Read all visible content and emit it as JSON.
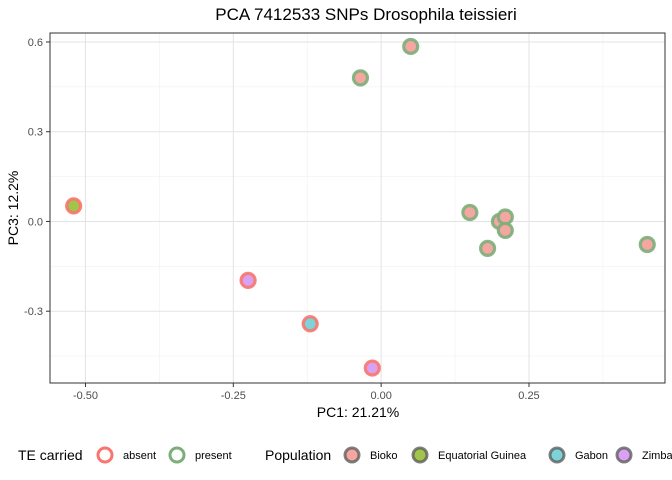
{
  "chart_data": {
    "type": "scatter",
    "title": "PCA 7412533 SNPs Drosophila teissieri",
    "xlabel": "PC1: 21.21%",
    "ylabel": "PC3: 12.2%",
    "xlim": [
      -0.56,
      0.48
    ],
    "ylim": [
      -0.54,
      0.63
    ],
    "x_ticks": [
      -0.5,
      -0.25,
      0,
      0.25
    ],
    "x_tick_labels": [
      "-0.50",
      "-0.25",
      "0.00",
      "0.25"
    ],
    "y_ticks": [
      -0.3,
      0,
      0.3,
      0.6
    ],
    "y_tick_labels": [
      "-0.3",
      "0.0",
      "0.3",
      "0.6"
    ],
    "grid": true,
    "legend_placement": "bottom",
    "te_legend": {
      "title": "TE carried",
      "entries": [
        {
          "label": "absent",
          "color": "#f8766d"
        },
        {
          "label": "present",
          "color": "#7cae7a"
        }
      ]
    },
    "population_legend": {
      "title": "Population",
      "entries": [
        {
          "label": "Bioko",
          "color": "#f4a6a0"
        },
        {
          "label": "Equatorial Guinea",
          "color": "#a3c44a"
        },
        {
          "label": "Gabon",
          "color": "#7dd3d8"
        },
        {
          "label": "Zimba",
          "color": "#d9a2f0"
        }
      ]
    },
    "points": [
      {
        "x": 0.05,
        "y": 0.585,
        "te": "present",
        "population": "Bioko"
      },
      {
        "x": -0.035,
        "y": 0.48,
        "te": "present",
        "population": "Bioko"
      },
      {
        "x": 0.15,
        "y": 0.03,
        "te": "present",
        "population": "Bioko"
      },
      {
        "x": 0.2,
        "y": 0.0,
        "te": "present",
        "population": "Bioko"
      },
      {
        "x": 0.21,
        "y": 0.015,
        "te": "present",
        "population": "Bioko"
      },
      {
        "x": 0.21,
        "y": -0.03,
        "te": "present",
        "population": "Bioko"
      },
      {
        "x": 0.18,
        "y": -0.09,
        "te": "present",
        "population": "Bioko"
      },
      {
        "x": 0.45,
        "y": -0.077,
        "te": "present",
        "population": "Bioko"
      },
      {
        "x": -0.52,
        "y": 0.052,
        "te": "absent",
        "population": "Equatorial Guinea"
      },
      {
        "x": -0.225,
        "y": -0.197,
        "te": "absent",
        "population": "Zimba"
      },
      {
        "x": -0.12,
        "y": -0.342,
        "te": "absent",
        "population": "Gabon"
      },
      {
        "x": -0.015,
        "y": -0.49,
        "te": "absent",
        "population": "Zimba"
      }
    ]
  }
}
